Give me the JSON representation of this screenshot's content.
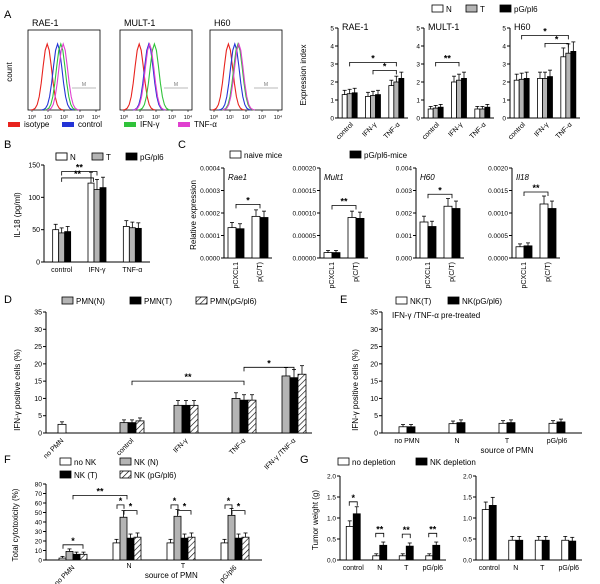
{
  "colors": {
    "white": "#ffffff",
    "gray": "#b4b4b4",
    "black": "#000000",
    "hatch": "#000000",
    "isotype": "#e8231e",
    "control": "#2333d6",
    "ifn": "#30c23a",
    "tnf": "#e040d0"
  },
  "chart_data": [
    {
      "panel": "A",
      "type": "line",
      "subtype": "flow-histogram",
      "titles": [
        "RAE-1",
        "MULT-1",
        "H60"
      ],
      "ylabel": "count",
      "x_ticks": [
        "10⁰",
        "10¹",
        "10²",
        "10³",
        "10⁴"
      ],
      "gate_label": "M",
      "legend": [
        "isotype",
        "control",
        "IFN-γ",
        "TNF-α"
      ],
      "peaks": {
        "RAE-1": {
          "isotype": 0.95,
          "control": 1.6,
          "IFN-γ": 1.8,
          "TNF-α": 1.95
        },
        "MULT-1": {
          "isotype": 0.95,
          "control": 1.55,
          "IFN-γ": 1.9,
          "TNF-α": 1.6
        },
        "H60": {
          "isotype": 0.9,
          "control": 1.3,
          "IFN-γ": 1.5,
          "TNF-α": 1.55
        }
      }
    },
    {
      "panel": "A",
      "type": "bar",
      "ylabel": "Expression index",
      "ylim": [
        0,
        5
      ],
      "yticks": [
        "0",
        "1",
        "2",
        "3",
        "4",
        "5"
      ],
      "legend": [
        "N",
        "T",
        "pG/pl6"
      ],
      "subplots": [
        {
          "title": "RAE-1",
          "categories": [
            "control",
            "IFN-γ",
            "TNF-α"
          ],
          "series": [
            {
              "name": "N",
              "values": [
                1.3,
                1.2,
                1.8
              ]
            },
            {
              "name": "T",
              "values": [
                1.35,
                1.25,
                2.0
              ]
            },
            {
              "name": "pG/pl6",
              "values": [
                1.4,
                1.3,
                2.2
              ]
            }
          ],
          "sig": [
            "*"
          ]
        },
        {
          "title": "MULT-1",
          "categories": [
            "control",
            "IFN-γ",
            "TNF-α"
          ],
          "series": [
            {
              "name": "N",
              "values": [
                0.5,
                2.0,
                0.5
              ]
            },
            {
              "name": "T",
              "values": [
                0.55,
                2.1,
                0.5
              ]
            },
            {
              "name": "pG/pl6",
              "values": [
                0.6,
                2.2,
                0.6
              ]
            }
          ],
          "sig": [
            "**"
          ]
        },
        {
          "title": "H60",
          "categories": [
            "control",
            "IFN-γ",
            "TNF-α"
          ],
          "series": [
            {
              "name": "N",
              "values": [
                2.1,
                2.2,
                3.4
              ]
            },
            {
              "name": "T",
              "values": [
                2.15,
                2.2,
                3.6
              ]
            },
            {
              "name": "pG/pl6",
              "values": [
                2.2,
                2.3,
                3.7
              ]
            }
          ],
          "sig": [
            "*"
          ]
        }
      ]
    },
    {
      "panel": "B",
      "type": "bar",
      "ylabel": "IL-18 (pg/ml)",
      "ylim": [
        0,
        150
      ],
      "yticks": [
        "0",
        "50",
        "100",
        "150"
      ],
      "categories": [
        "control",
        "IFN-γ",
        "TNF-α"
      ],
      "series": [
        {
          "name": "N",
          "values": [
            50,
            122,
            55
          ]
        },
        {
          "name": "T",
          "values": [
            45,
            112,
            53
          ]
        },
        {
          "name": "pG/pl6",
          "values": [
            47,
            115,
            52
          ]
        }
      ],
      "sig": [
        "**"
      ]
    },
    {
      "panel": "C",
      "type": "bar",
      "ylabel": "Relative expression",
      "legend": [
        "naive mice",
        "pG/pl6-mice"
      ],
      "categories": [
        "pCXCL1",
        "p(C/T)"
      ],
      "subplots": [
        {
          "title": "Rae1",
          "ylim": [
            0,
            0.0004
          ],
          "yticks": [
            "0.0000",
            "0.0001",
            "0.0002",
            "0.0003",
            "0.0004"
          ],
          "series": [
            {
              "name": "naive mice",
              "values": [
                0.000135,
                0.000185
              ]
            },
            {
              "name": "pG/pl6-mice",
              "values": [
                0.00013,
                0.00018
              ]
            }
          ],
          "sig": [
            "*"
          ]
        },
        {
          "title": "Mult1",
          "ylim": [
            0,
            0.0002
          ],
          "yticks": [
            "0.00000",
            "0.00005",
            "0.00010",
            "0.00015",
            "0.00020"
          ],
          "series": [
            {
              "name": "naive mice",
              "values": [
                1.2e-05,
                9e-05
              ]
            },
            {
              "name": "pG/pl6-mice",
              "values": [
                1.2e-05,
                8.8e-05
              ]
            }
          ],
          "sig": [
            "**"
          ]
        },
        {
          "title": "H60",
          "ylim": [
            0,
            0.004
          ],
          "yticks": [
            "0.000",
            "0.001",
            "0.002",
            "0.003",
            "0.004"
          ],
          "series": [
            {
              "name": "naive mice",
              "values": [
                0.0016,
                0.0023
              ]
            },
            {
              "name": "pG/pl6-mice",
              "values": [
                0.0014,
                0.0022
              ]
            }
          ],
          "sig": [
            "*"
          ]
        },
        {
          "title": "Il18",
          "ylim": [
            0,
            0.002
          ],
          "yticks": [
            "0.0000",
            "0.0005",
            "0.0010",
            "0.0015",
            "0.0020"
          ],
          "series": [
            {
              "name": "naive mice",
              "values": [
                0.00025,
                0.0012
              ]
            },
            {
              "name": "pG/pl6-mice",
              "values": [
                0.00027,
                0.0011
              ]
            }
          ],
          "sig": [
            "**"
          ]
        }
      ]
    },
    {
      "panel": "D",
      "type": "bar",
      "ylabel": "IFN-γ  positive cells (%)",
      "ylim": [
        0,
        35
      ],
      "yticks": [
        "0",
        "5",
        "10",
        "15",
        "20",
        "25",
        "30",
        "35"
      ],
      "legend": [
        "PMN(N)",
        "PMN(T)",
        "PMN(pG/pl6)"
      ],
      "categories": [
        "no PMN",
        "control",
        "IFN-γ",
        "TNF-α",
        "IFN-γ /TNF-α"
      ],
      "series": [
        {
          "name": "PMN(N)",
          "values": [
            2.5,
            3.0,
            8.0,
            10.0,
            16.5
          ]
        },
        {
          "name": "PMN(T)",
          "values": [
            null,
            3.0,
            8.0,
            9.5,
            16.0
          ]
        },
        {
          "name": "PMN(pG/pl6)",
          "values": [
            null,
            3.5,
            8.0,
            9.5,
            17.0
          ]
        }
      ],
      "sig": [
        "**",
        "*"
      ]
    },
    {
      "panel": "E",
      "type": "bar",
      "ylabel": "IFN-γ  positive cells (%)",
      "ylim": [
        0,
        35
      ],
      "yticks": [
        "0",
        "5",
        "10",
        "15",
        "20",
        "25",
        "30",
        "35"
      ],
      "legend": [
        "NK(T)",
        "NK(pG/pl6)"
      ],
      "subtitle": "IFN-γ /TNF-α  pre-treated",
      "categories": [
        "no PMN",
        "N",
        "T",
        "pG/pl6"
      ],
      "xlabel": "source of PMN",
      "series": [
        {
          "name": "NK(T)",
          "values": [
            1.8,
            2.7,
            2.8,
            2.8
          ]
        },
        {
          "name": "NK(pG/pl6)",
          "values": [
            1.8,
            3.0,
            3.0,
            3.2
          ]
        }
      ]
    },
    {
      "panel": "F",
      "type": "bar",
      "ylabel": "Total cytotoxicity (%)",
      "ylim": [
        0,
        80
      ],
      "yticks": [
        "0",
        "10",
        "20",
        "30",
        "40",
        "50",
        "60",
        "70",
        "80"
      ],
      "legend": [
        "no NK",
        "NK (N)",
        "NK (T)",
        "NK (pG/pl6)"
      ],
      "categories": [
        "no PMN",
        "N",
        "T",
        "pG/pl6"
      ],
      "xlabel": "source of PMN",
      "series": [
        {
          "name": "no NK",
          "values": [
            2,
            18,
            18,
            18
          ]
        },
        {
          "name": "NK (N)",
          "values": [
            9,
            45,
            46,
            47
          ]
        },
        {
          "name": "NK (T)",
          "values": [
            6,
            23,
            23,
            23
          ]
        },
        {
          "name": "NK (pG/pl6)",
          "values": [
            6,
            24,
            24,
            24
          ]
        }
      ],
      "sig": [
        "*",
        "**",
        "*",
        "*",
        "*",
        "*",
        "*",
        "*"
      ]
    },
    {
      "panel": "G",
      "type": "bar",
      "ylabel": "Tumor weight (g)",
      "ylim": [
        0,
        2.0
      ],
      "yticks": [
        "0.0",
        "0.5",
        "1.0",
        "1.5",
        "2.0"
      ],
      "legend": [
        "no depletion",
        "NK depletion"
      ],
      "subplots": [
        {
          "categories": [
            "control",
            "N",
            "T",
            "pG/pl6"
          ],
          "series": [
            {
              "name": "no depletion",
              "values": [
                0.8,
                0.1,
                0.1,
                0.1
              ]
            },
            {
              "name": "NK depletion",
              "values": [
                1.1,
                0.35,
                0.33,
                0.35
              ]
            }
          ],
          "sig": [
            "*",
            "**",
            "**",
            "**"
          ]
        },
        {
          "categories": [
            "control",
            "N",
            "T",
            "pG/pl6"
          ],
          "series": [
            {
              "name": "no depletion",
              "values": [
                1.2,
                0.47,
                0.47,
                0.47
              ]
            },
            {
              "name": "NK depletion",
              "values": [
                1.3,
                0.47,
                0.47,
                0.45
              ]
            }
          ]
        }
      ]
    }
  ],
  "panel_letters": [
    "A",
    "B",
    "C",
    "D",
    "E",
    "F",
    "G"
  ]
}
